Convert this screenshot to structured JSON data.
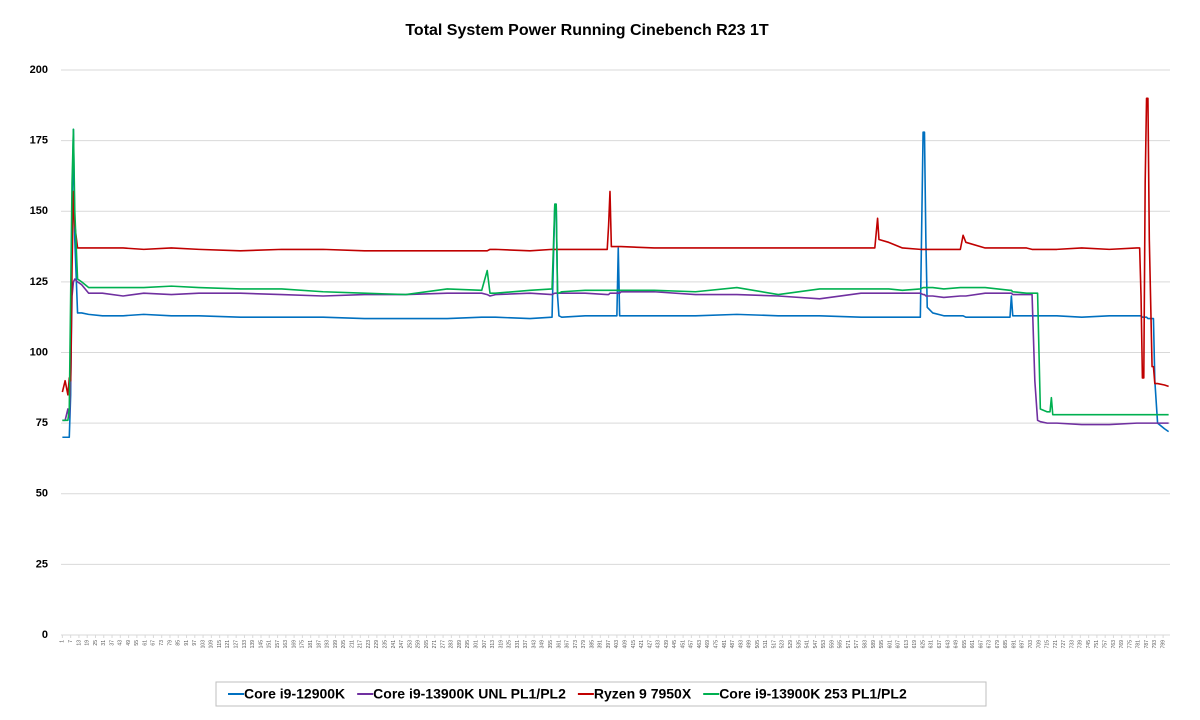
{
  "chart_data": {
    "type": "line",
    "title": "Total System Power Running Cinebench R23 1T",
    "x": [
      1,
      3,
      5,
      6,
      7,
      8,
      9,
      10,
      12,
      15,
      20,
      30,
      45,
      60,
      80,
      100,
      130,
      160,
      190,
      220,
      250,
      280,
      305,
      309,
      311,
      315,
      340,
      356,
      358,
      359,
      360,
      361,
      363,
      380,
      396,
      397,
      398,
      399,
      403,
      404,
      405,
      406,
      430,
      460,
      490,
      520,
      550,
      580,
      590,
      592,
      593,
      600,
      610,
      623,
      625,
      626,
      627,
      628,
      632,
      640,
      652,
      654,
      656,
      670,
      688,
      689,
      690,
      700,
      704,
      706,
      708,
      710,
      715,
      717,
      718,
      719,
      722,
      740,
      760,
      780,
      782,
      783,
      784,
      785,
      786,
      787,
      788,
      789,
      791,
      792,
      793,
      795,
      800,
      803
    ],
    "series": [
      {
        "name": "Core i9-12900K",
        "color": "#0070c0",
        "values": [
          70,
          70,
          70,
          70,
          85,
          150,
          179,
          140,
          114,
          114,
          113.5,
          113,
          113,
          113.5,
          113,
          113,
          112.5,
          112.5,
          112.5,
          112,
          112,
          112,
          112.5,
          112.5,
          112.5,
          112.5,
          112,
          112.5,
          152.5,
          152.5,
          120,
          113,
          112.5,
          113,
          113,
          113,
          113,
          113,
          113,
          137,
          113,
          113,
          113,
          113,
          113.5,
          113,
          113,
          112.5,
          112.5,
          112.5,
          112.5,
          112.5,
          112.5,
          112.5,
          178,
          178,
          140,
          116,
          114,
          113,
          113,
          113,
          112.5,
          112.5,
          112.5,
          120,
          113,
          113,
          113,
          113,
          113,
          113,
          113,
          113,
          113,
          113,
          113,
          112.5,
          113,
          113,
          113,
          113,
          112.5,
          112.5,
          112.5,
          112.5,
          112,
          112,
          112,
          112,
          90,
          75,
          73,
          72
        ]
      },
      {
        "name": "Core i9-13900K UNL PL1/PL2",
        "color": "#7030a0",
        "values": [
          76,
          76,
          80,
          77,
          90,
          120,
          125,
          126,
          125,
          124,
          121,
          121,
          120,
          121,
          120.5,
          121,
          121,
          120.5,
          120,
          120.5,
          120.5,
          121,
          121,
          120.5,
          120,
          120.5,
          121,
          120.5,
          121,
          121,
          121,
          121,
          121,
          121,
          120.5,
          120.5,
          121,
          121,
          121,
          121,
          121,
          121.5,
          121.5,
          120.5,
          120.5,
          120,
          119,
          121,
          121,
          121,
          121,
          121,
          121,
          121,
          120.5,
          120.5,
          120,
          120,
          120,
          119.5,
          120,
          120,
          120,
          121,
          121,
          121,
          120.5,
          120.5,
          120.5,
          90,
          76,
          75.5,
          75,
          75,
          75,
          75,
          75,
          74.5,
          74.5,
          75,
          75,
          75,
          75,
          75,
          75,
          75,
          75,
          75,
          75,
          75,
          75,
          75,
          75,
          75
        ]
      },
      {
        "name": "Ryzen 9 7950X",
        "color": "#c00000",
        "values": [
          86,
          90,
          85,
          91,
          90,
          130,
          157,
          145,
          137,
          137,
          137,
          137,
          137,
          136.5,
          137,
          136.5,
          136,
          136.5,
          136.5,
          136,
          136,
          136,
          136,
          136,
          136.5,
          136.5,
          136,
          136.5,
          136.5,
          136.5,
          136.5,
          136.5,
          136.5,
          136.5,
          136.5,
          145,
          157,
          137.5,
          137.5,
          137.5,
          137.5,
          137.5,
          137,
          137,
          137,
          137,
          137,
          137,
          137,
          147.5,
          140,
          139,
          137,
          136.5,
          136.5,
          136.5,
          136.5,
          136.5,
          136.5,
          136.5,
          136.5,
          141.5,
          139,
          137,
          137,
          137,
          137,
          137,
          136.5,
          136.5,
          136.5,
          136.5,
          136.5,
          136.5,
          136.5,
          136.5,
          136.5,
          137,
          136.5,
          137,
          137,
          120,
          91,
          91,
          160,
          190,
          190,
          140,
          95,
          95,
          89,
          89,
          88.5,
          88
        ]
      },
      {
        "name": "Core i9-13900K 253 PL1/PL2",
        "color": "#00b050",
        "values": [
          76,
          76,
          76,
          80,
          120,
          160,
          179,
          150,
          126,
          125,
          123,
          123,
          123,
          123,
          123.5,
          123,
          122.5,
          122.5,
          121.5,
          121,
          120.5,
          122.5,
          122,
          129,
          121,
          121,
          122,
          122.5,
          152.5,
          152.5,
          121,
          121,
          121.5,
          122,
          122,
          122,
          122,
          122,
          122,
          122,
          122,
          122,
          122,
          121.5,
          123,
          120.5,
          122.5,
          122.5,
          122.5,
          122.5,
          122.5,
          122.5,
          122,
          122.5,
          123,
          123,
          123,
          123,
          123,
          122.5,
          123,
          123,
          123,
          123,
          122,
          122,
          121.5,
          121,
          121,
          121,
          121,
          80,
          79,
          79,
          84,
          78,
          78,
          78,
          78,
          78,
          78,
          78,
          78,
          78,
          78,
          78,
          78,
          78,
          78,
          78,
          78,
          78,
          78,
          78
        ]
      }
    ],
    "xlim": [
      0,
      804
    ],
    "xticks": [
      1,
      7,
      13,
      19,
      25,
      31,
      37,
      43,
      49,
      55,
      61,
      67,
      73,
      79,
      85,
      91,
      97,
      103,
      109,
      115,
      121,
      127,
      133,
      139,
      145,
      151,
      157,
      163,
      169,
      175,
      181,
      187,
      193,
      199,
      205,
      211,
      217,
      223,
      229,
      235,
      241,
      247,
      253,
      259,
      265,
      271,
      277,
      283,
      289,
      295,
      301,
      307,
      313,
      319,
      325,
      331,
      337,
      343,
      349,
      355,
      361,
      367,
      373,
      379,
      385,
      391,
      397,
      403,
      409,
      415,
      421,
      427,
      433,
      439,
      445,
      451,
      457,
      463,
      469,
      475,
      481,
      487,
      493,
      499,
      505,
      511,
      517,
      523,
      529,
      535,
      541,
      547,
      553,
      559,
      565,
      571,
      577,
      583,
      589,
      595,
      601,
      607,
      613,
      619,
      625,
      631,
      637,
      643,
      649,
      655,
      661,
      667,
      673,
      679,
      685,
      691,
      697,
      703,
      709,
      715,
      721,
      727,
      733,
      739,
      745,
      751,
      757,
      763,
      769,
      775,
      781,
      787,
      793,
      799
    ],
    "ylim": [
      0,
      200
    ],
    "yticks": [
      0,
      25,
      50,
      75,
      100,
      125,
      150,
      175,
      200
    ],
    "grid": true,
    "legend": "bottom"
  }
}
